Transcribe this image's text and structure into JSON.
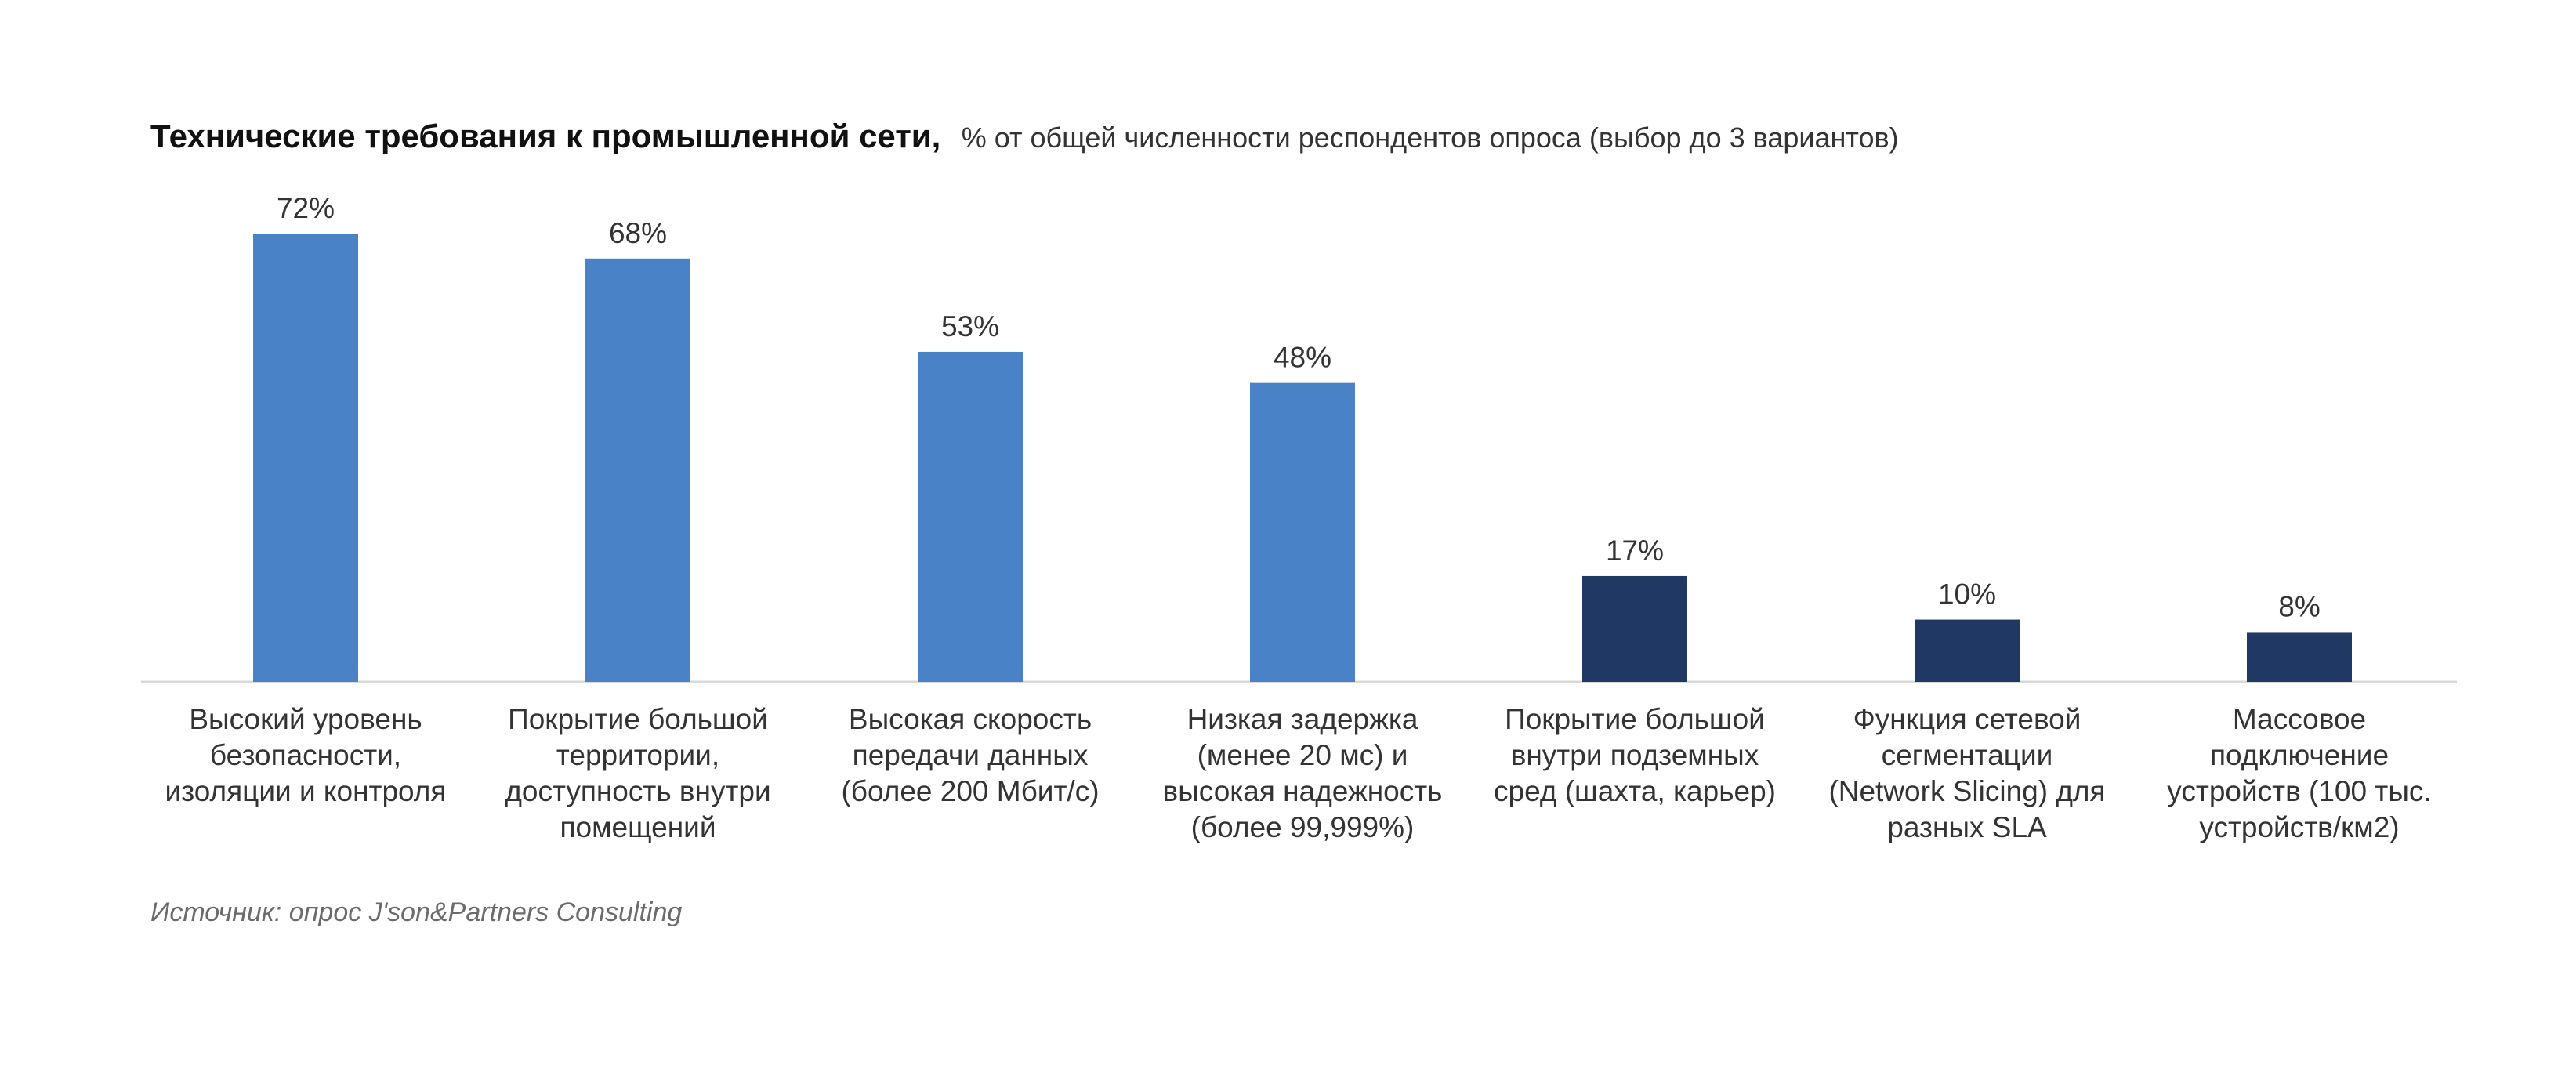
{
  "chart_data": {
    "type": "bar",
    "title": "Технические требования к промышленной сети,",
    "subtitle": "% от общей численности респондентов опроса (выбор до 3 вариантов)",
    "categories": [
      [
        "Высокий уровень",
        "безопасности,",
        "изоляции и контроля"
      ],
      [
        "Покрытие большой",
        "территории,",
        "доступность внутри",
        "помещений"
      ],
      [
        "Высокая скорость",
        "передачи данных",
        "(более 200 Мбит/с)"
      ],
      [
        "Низкая задержка",
        "(менее 20 мс) и",
        "высокая надежность",
        "(более 99,999%)"
      ],
      [
        "Покрытие большой",
        "внутри подземных",
        "сред (шахта, карьер)"
      ],
      [
        "Функция сетевой",
        "сегментации",
        "(Network Slicing) для",
        "разных SLA"
      ],
      [
        "Массовое",
        "подключение",
        "устройств (100 тыс.",
        "устройств/км2)"
      ]
    ],
    "values": [
      72,
      68,
      53,
      48,
      17,
      10,
      8
    ],
    "value_labels": [
      "72%",
      "68%",
      "53%",
      "48%",
      "17%",
      "10%",
      "8%"
    ],
    "bar_colors": [
      "#4a82c8",
      "#4a82c8",
      "#4a82c8",
      "#4a82c8",
      "#1f3864",
      "#1f3864",
      "#1f3864"
    ],
    "axis_color": "#d9d9d9",
    "xlabel": "",
    "ylabel": "",
    "ylim": [
      0,
      72
    ],
    "grid": false,
    "legend": "none"
  },
  "source": "Источник: опрос J'son&Partners Consulting"
}
